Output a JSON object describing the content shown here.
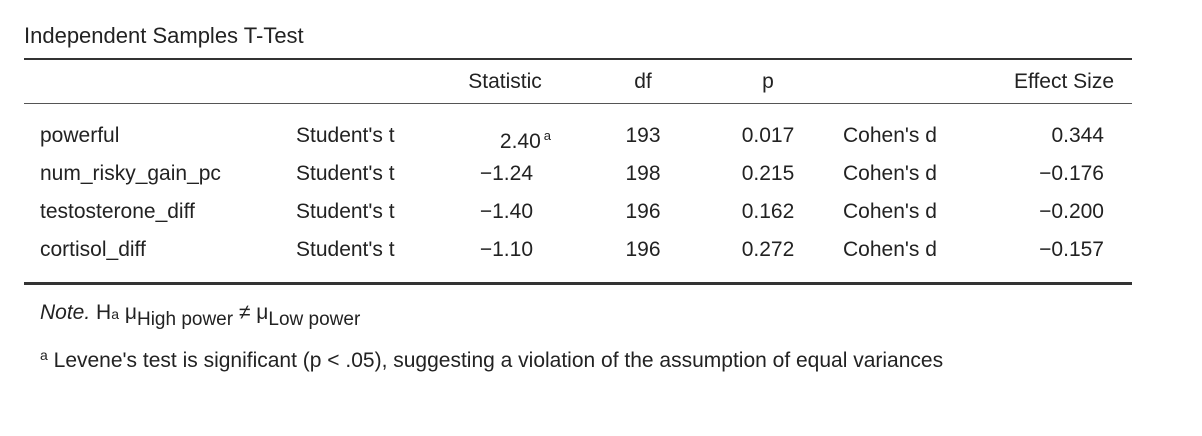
{
  "title": "Independent Samples T-Test",
  "table": {
    "columns": [
      "Statistic",
      "df",
      "p",
      "Effect Size"
    ],
    "rows": [
      {
        "variable": "powerful",
        "test": "Student's t",
        "statistic": "2.40",
        "statistic_marker": "a",
        "df": "193",
        "p": "0.017",
        "effect_measure": "Cohen's d",
        "effect_size": "0.344"
      },
      {
        "variable": "num_risky_gain_pc",
        "test": "Student's t",
        "statistic": "−1.24",
        "df": "198",
        "p": "0.215",
        "effect_measure": "Cohen's d",
        "effect_size": "−0.176"
      },
      {
        "variable": "testosterone_diff",
        "test": "Student's t",
        "statistic": "−1.40",
        "df": "196",
        "p": "0.162",
        "effect_measure": "Cohen's d",
        "effect_size": "−0.200"
      },
      {
        "variable": "cortisol_diff",
        "test": "Student's t",
        "statistic": "−1.10",
        "df": "196",
        "p": "0.272",
        "effect_measure": "Cohen's d",
        "effect_size": "−0.157"
      }
    ]
  },
  "note": {
    "label": "Note.",
    "hypothesis": "H",
    "hypothesis_sub": "a",
    "mu1": "μ",
    "group1": "High power",
    "neq": "≠",
    "mu2": "μ",
    "group2": "Low power"
  },
  "footnote": {
    "marker": "a",
    "text": "Levene's test is significant (p < .05), suggesting a violation of the assumption of equal variances"
  }
}
